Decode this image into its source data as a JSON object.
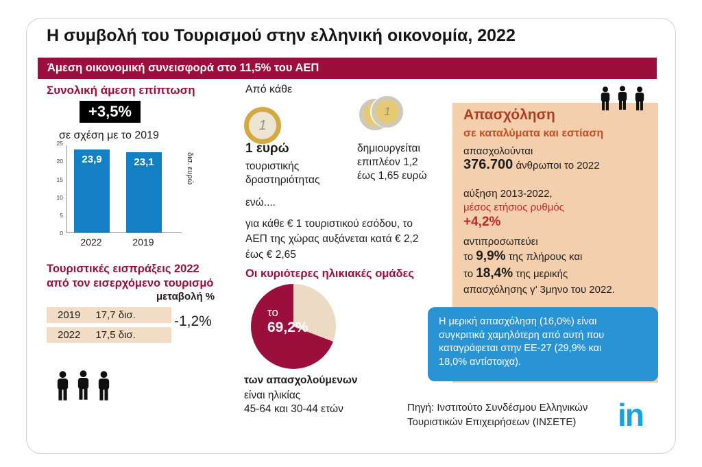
{
  "page_title": "Η συμβολή του Τουρισμού στην ελληνική οικονομία, 2022",
  "banner": "Άμεση οικονομική συνεισφορά  στο 11,5% του ΑΕΠ",
  "impact": {
    "title": "Συνολική άμεση επίπτωση",
    "badge": "+3,5%",
    "subtitle": "σε σχέση με το 2019"
  },
  "chart_data": [
    {
      "type": "bar",
      "categories": [
        "2022",
        "2019"
      ],
      "values": [
        23.9,
        23.1
      ],
      "value_labels": [
        "23,9",
        "23,1"
      ],
      "ylabel": "δισ. ευρώ",
      "ylim": [
        0,
        25
      ],
      "yticks": [
        0,
        5,
        10,
        15,
        20,
        25
      ],
      "bar_color": "#1380c4",
      "grid": false,
      "context": "Συνολική άμεση επίπτωση +3,5% σε σχέση με το 2019"
    },
    {
      "type": "pie",
      "values": [
        69.2,
        30.8
      ],
      "labels": [
        "των απασχολούμενων ηλικίας 45-64 και 30-44 ετών",
        ""
      ],
      "colors": [
        "#9a0f3c",
        "#eddac5"
      ],
      "center_label_line1": "το",
      "center_label_line2": "69,2%",
      "title": "Οι κυριότερες ηλικιακές ομάδες",
      "legend_position": "none"
    },
    {
      "type": "table",
      "title": "Τουριστικές εισπράξεις 2022 από τον εισερχόμενο τουρισμό",
      "categories": [
        "2019",
        "2022"
      ],
      "values": [
        17.7,
        17.5
      ],
      "value_labels": [
        "17,7 δισ.",
        "17,5 δισ."
      ],
      "change_label": "μεταβολή %",
      "change_value": "-1,2%"
    }
  ],
  "receipts": {
    "title": "Τουριστικές εισπράξεις 2022 από τον εισερχόμενο τουρισμό",
    "change_header": "μεταβολή %",
    "rows": [
      {
        "year": "2019",
        "value": "17,7 δισ."
      },
      {
        "year": "2022",
        "value": "17,5 δισ."
      }
    ],
    "change_value": "-1,2%"
  },
  "euro": {
    "from_each": "Από κάθε",
    "coin_face": "1",
    "amount": "1 ευρώ",
    "amount_desc": "τουριστικής δραστηριότητας",
    "while_text": "ενώ....",
    "extra": "δημιουργείται επιπλέον 1,2 έως 1,65 ευρώ",
    "gdp_note": "για κάθε € 1 τουριστικού εσόδου, το ΑΕΠ της χώρας αυξάνεται κατά € 2,2 έως € 2,65"
  },
  "ages": {
    "title": "Οι κυριότερες ηλικιακές ομάδες",
    "caption_bold": "των απασχολούμενων",
    "caption_line2": "είναι ηλικίας",
    "caption_line3": "45-64 και 30-44 ετών"
  },
  "employment": {
    "title": "Απασχόληση",
    "subtitle": "σε καταλύματα και εστίαση",
    "employed_intro": "απασχολούνται",
    "employed_value": "376.700",
    "employed_suffix": " άνθρωποι το 2022",
    "increase_line": "αύξηση 2013-2022,",
    "rate_label": "μέσος ετήσιος ρυθμός",
    "rate_value": "+4,2%",
    "represents": "αντιπροσωπεύει",
    "full_prefix": "το ",
    "full_value": "9,9%",
    "full_suffix": " της πλήρους και",
    "part_prefix": "το ",
    "part_value": "18,4%",
    "part_suffix": " της μερικής",
    "quarter_line": "απασχόλησης γ’ 3μηνο του 2022.",
    "note": "Η μερική απασχόληση (16,0%) είναι συγκριτικά χαμηλότερη από αυτή που καταγράφεται στην ΕΕ-27 (29,9% και 18,0% αντίστοιχα)."
  },
  "footer": {
    "source": "Πηγή: Ινστιτούτο Συνδέσμου Ελληνικών Τουριστικών Επιχειρήσεων (ΙΝΣΕΤΕ)",
    "logo_text": "in"
  },
  "colors": {
    "maroon": "#9a0f3c",
    "bar_blue": "#1380c4",
    "panel_peach": "#f3cfae",
    "row_beige": "#f3dcc6",
    "note_blue": "#2a93d3",
    "logo_blue": "#16a3de",
    "employment_red": "#c1272d",
    "employment_title_red": "#ad3d22",
    "badge_black": "#000000"
  }
}
